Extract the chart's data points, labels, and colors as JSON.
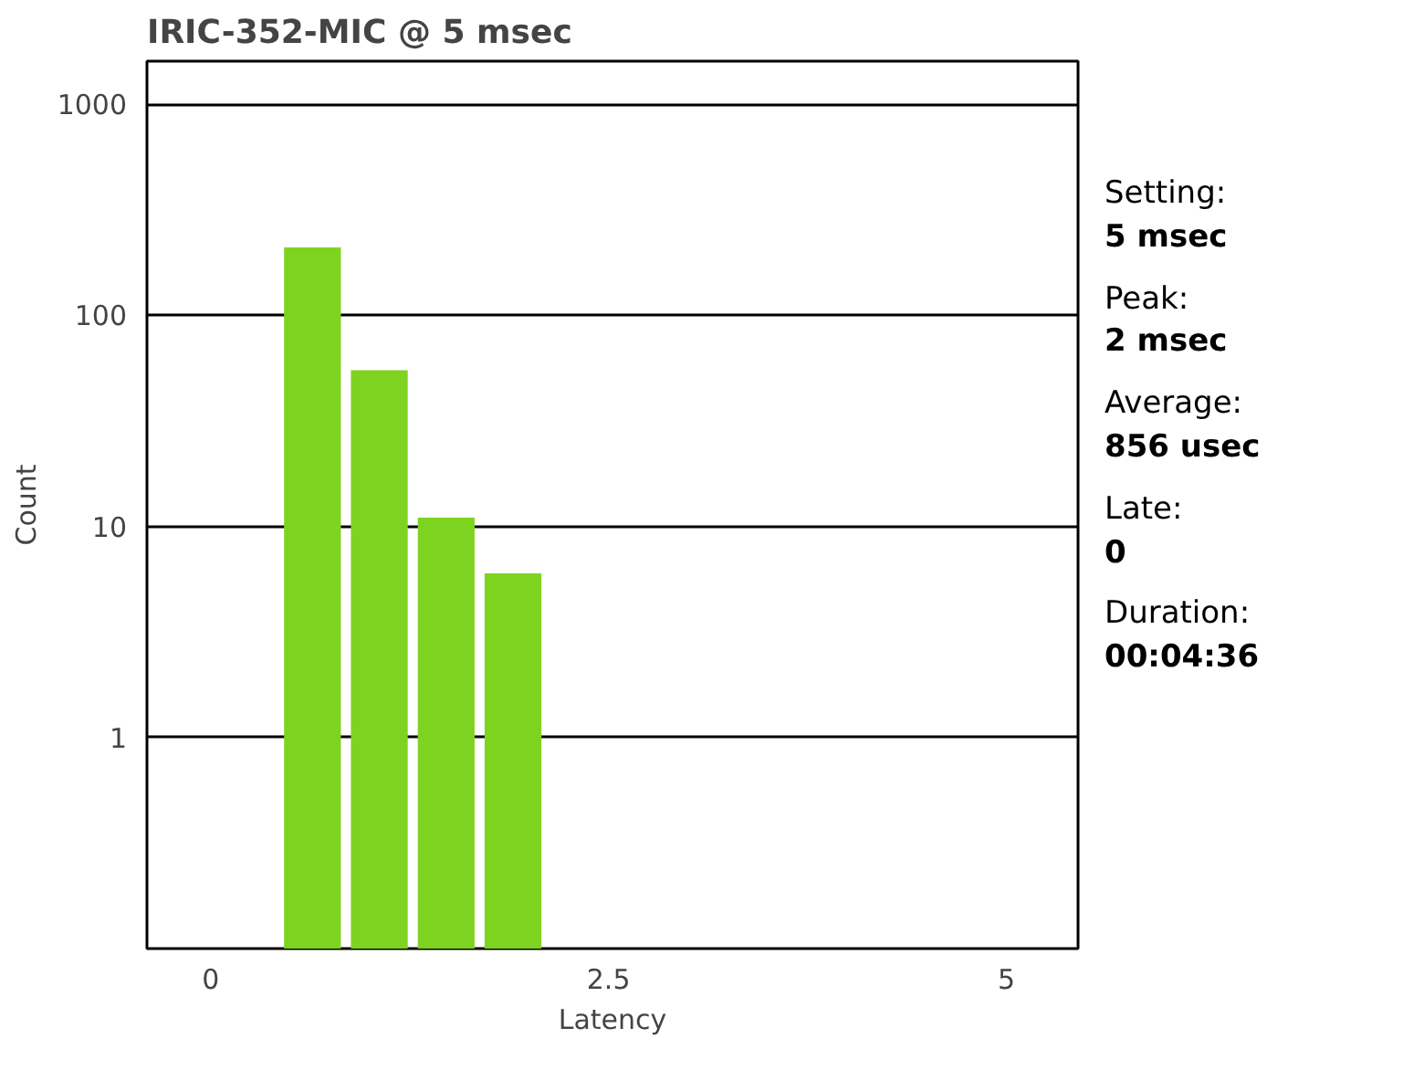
{
  "chart_data": {
    "type": "histogram",
    "title": "IRIC-352-MIC @ 5 msec",
    "xlabel": "Latency",
    "ylabel": "Count",
    "bins": [
      0.43,
      0.85,
      1.27,
      1.69,
      2.11
    ],
    "values": [
      210,
      55,
      11,
      6
    ],
    "color": "#7ed321",
    "log": "y",
    "grid": "y",
    "xlim": [
      -0.4,
      5.45
    ],
    "xticks": [
      0,
      2.5,
      5
    ],
    "ylim": [
      0.1,
      1600
    ],
    "yticks": [
      1,
      10,
      100,
      1000
    ],
    "annotations": [
      "Setting:",
      "5 msec",
      "Peak:",
      "2 msec",
      "Average:",
      "856 usec",
      "Late:",
      "0",
      "Duration:",
      "00:04:36"
    ]
  }
}
